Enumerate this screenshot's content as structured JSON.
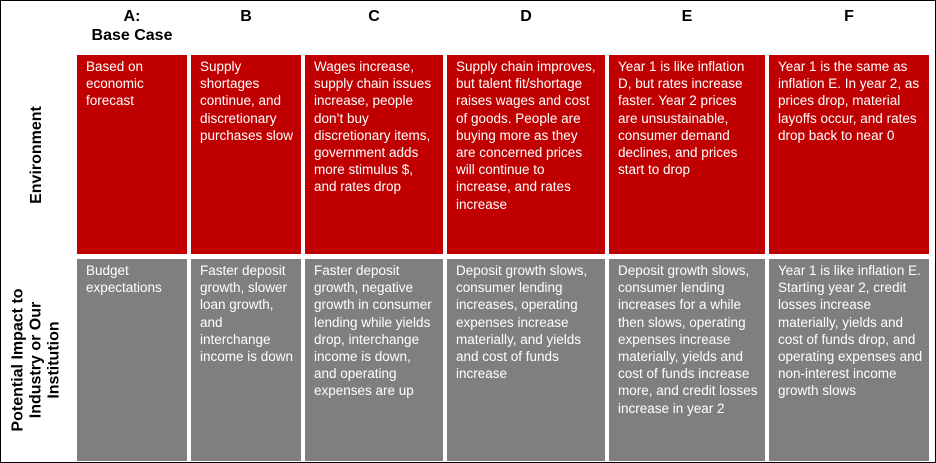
{
  "columns": [
    {
      "letter": "A:",
      "name": "Base Case"
    },
    {
      "letter": "B",
      "name": ""
    },
    {
      "letter": "C",
      "name": ""
    },
    {
      "letter": "D",
      "name": ""
    },
    {
      "letter": "E",
      "name": ""
    },
    {
      "letter": "F",
      "name": ""
    }
  ],
  "rows": {
    "environment": {
      "label": "Environment",
      "cells": [
        "Based on economic forecast",
        "Supply shortages continue, and discretionary purchases slow",
        "Wages increase, supply chain issues increase, people don’t buy discretionary items, government adds more stimulus $, and rates drop",
        "Supply chain improves, but talent fit/shortage raises wages and cost of goods. People are buying more as they are concerned prices will continue to increase, and rates increase",
        "Year 1 is like inflation D, but rates increase faster. Year 2 prices are unsustainable, consumer demand declines, and prices start to drop",
        "Year 1 is the same as inflation E. In year 2, as prices drop, material layoffs occur, and rates drop back to near 0"
      ]
    },
    "impact": {
      "label_line1": "Potential Impact to",
      "label_line2": "Industry or Our",
      "label_line3": "Institution",
      "cells": [
        "Budget expectations",
        "Faster deposit growth, slower loan growth, and interchange income is down",
        "Faster deposit growth, negative growth in consumer lending while yields drop, interchange income is down, and operating expenses are up",
        "Deposit growth slows, consumer lending increases, operating expenses increase materially, and yields and cost of funds increase",
        "Deposit growth slows, consumer lending increases for a while then slows, operating expenses increase materially, yields and cost of funds increase more, and credit losses increase in year 2",
        "Year 1 is like inflation E. Starting year 2, credit losses increase materially, yields and cost of funds drop, and operating expenses and non-interest income growth slows"
      ]
    }
  },
  "colors": {
    "environment": "#c00000",
    "impact": "#7f7f7f"
  }
}
